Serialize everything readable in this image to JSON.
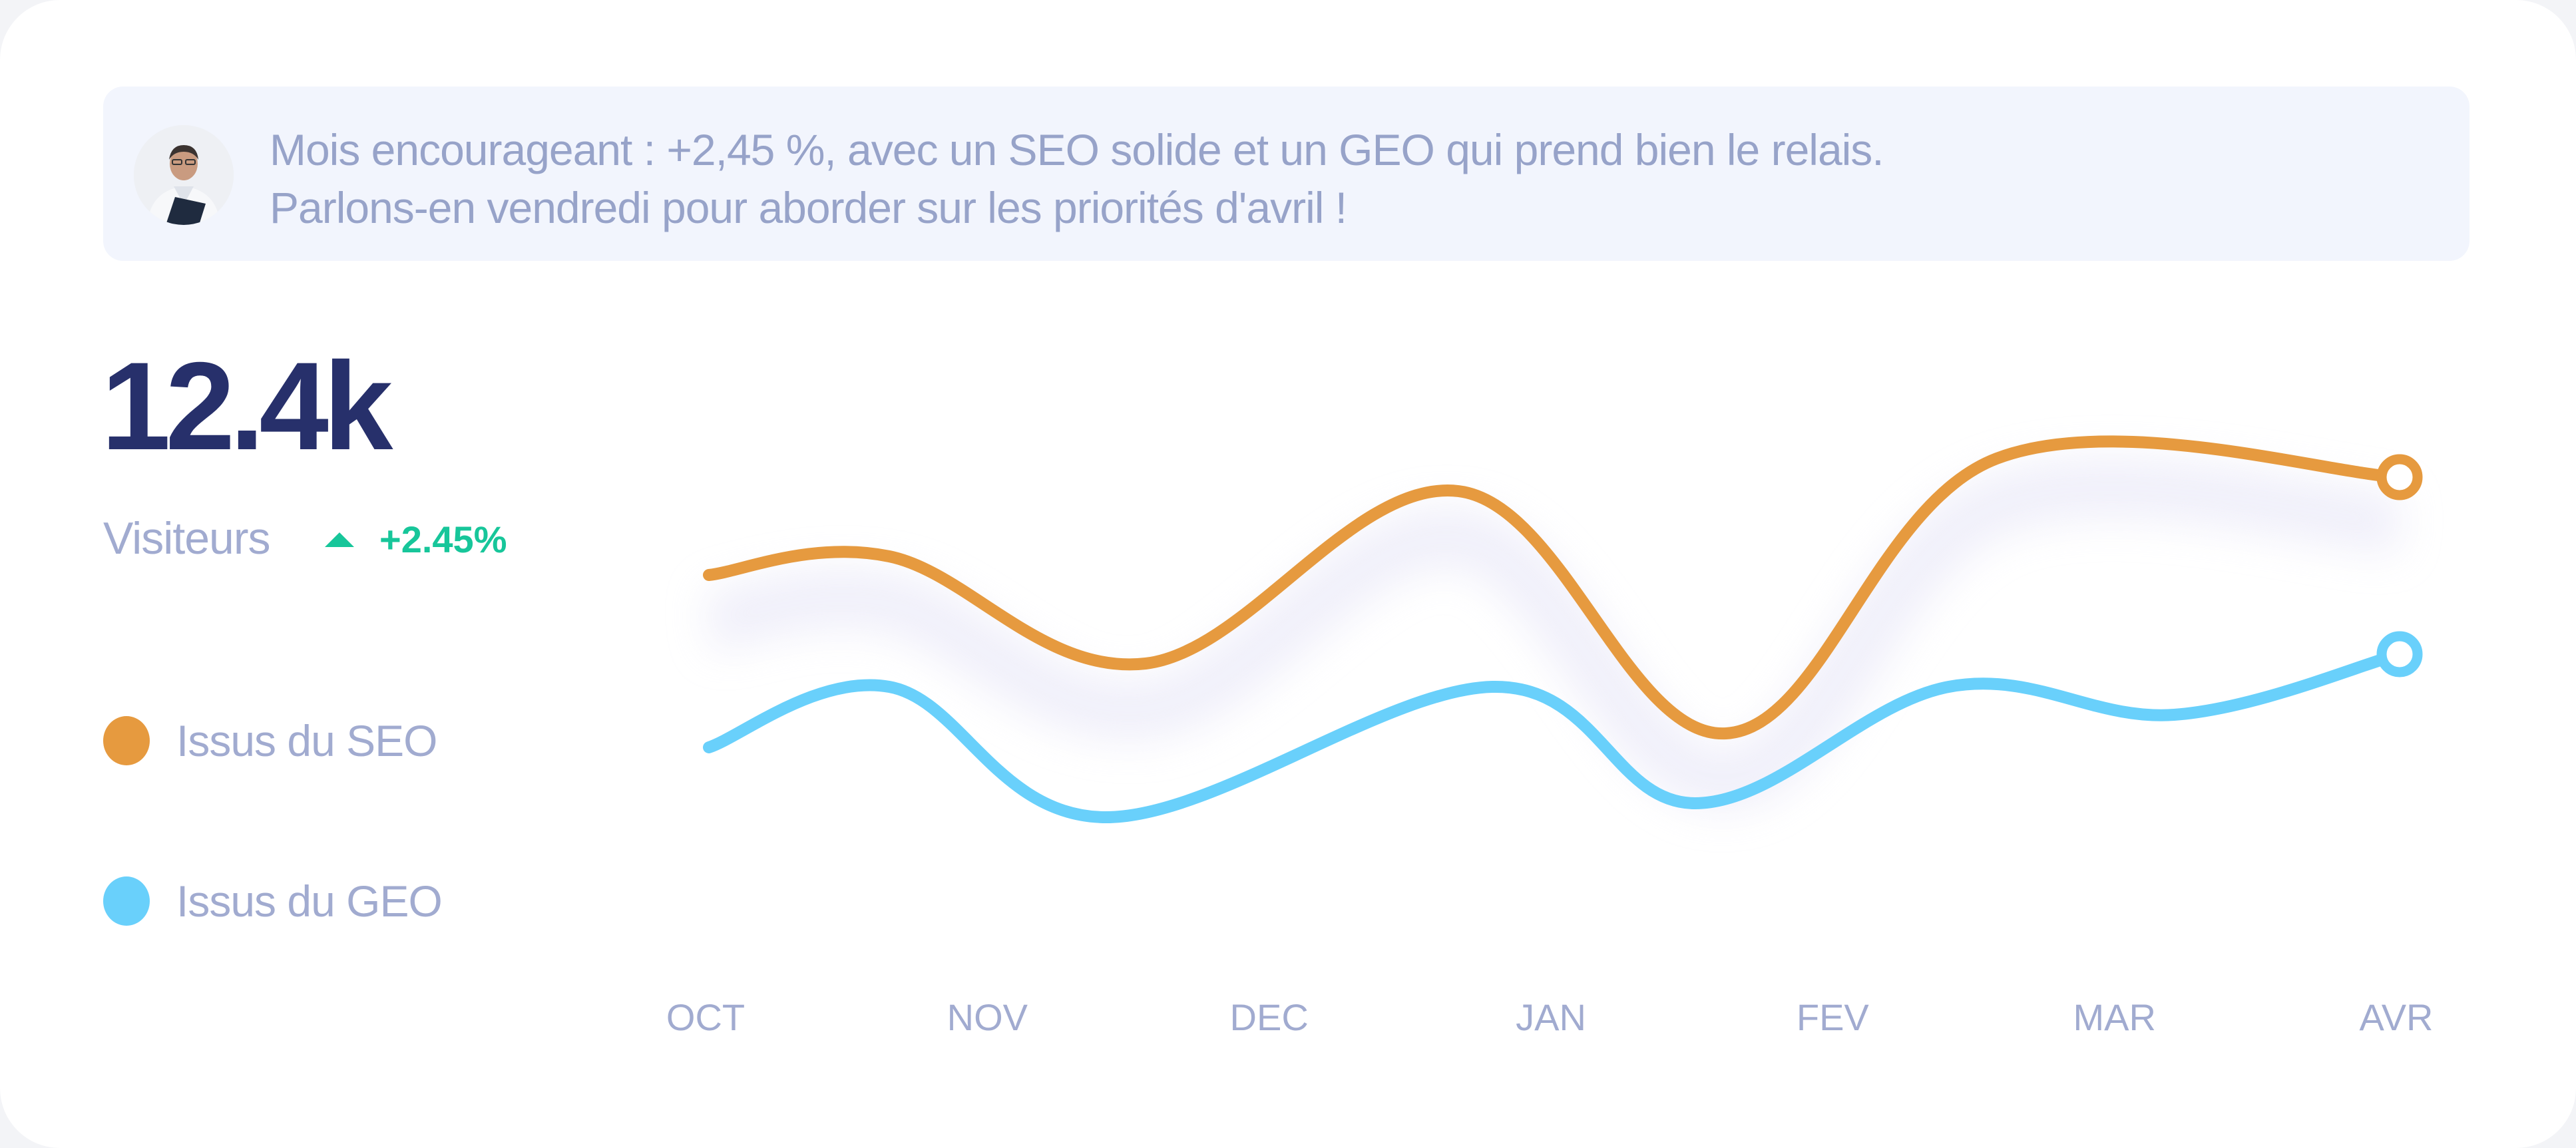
{
  "banner": {
    "line1": "Mois encourageant : +2,45 %, avec un SEO solide et un GEO qui prend bien le relais.",
    "line2": "Parlons-en vendredi pour aborder sur les priorités d'avril !"
  },
  "kpi": {
    "value": "12.4k",
    "label": "Visiteurs",
    "change": "+2.45%",
    "change_icon": "triangle-up-icon"
  },
  "colors": {
    "seo": "#e69a3f",
    "geo": "#69d0fb",
    "accent": "#17c69a",
    "title": "#27306b"
  },
  "chart_data": {
    "type": "line",
    "categories": [
      "OCT",
      "NOV",
      "DEC",
      "JAN",
      "FEV",
      "MAR",
      "AVR"
    ],
    "ylim": [
      0,
      100
    ],
    "series": [
      {
        "name": "Issus du SEO",
        "x": [
          0,
          0.64,
          1.55,
          2.66,
          3.61,
          4.57,
          6.0
        ],
        "values": [
          68,
          72,
          49,
          86,
          34,
          93,
          89
        ]
      },
      {
        "name": "Issus du GEO",
        "x": [
          0,
          0.64,
          1.41,
          2.78,
          3.5,
          4.4,
          5.2,
          6.0
        ],
        "values": [
          31,
          44,
          16,
          44,
          19,
          44,
          38,
          51
        ]
      }
    ]
  }
}
